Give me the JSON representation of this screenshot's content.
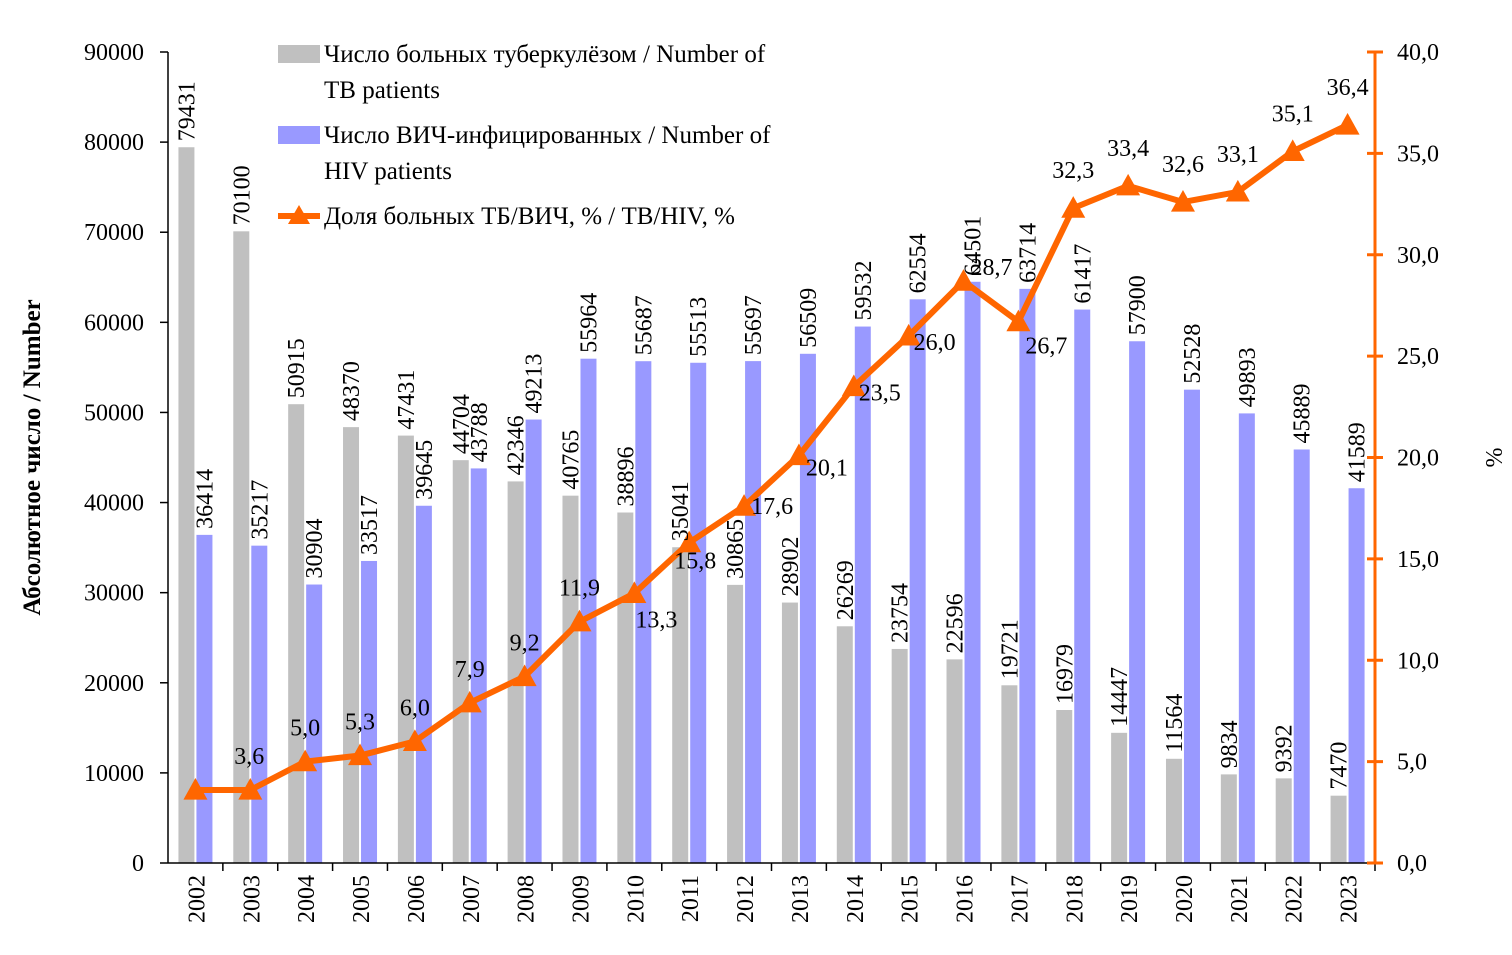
{
  "chart_data": {
    "type": "bar",
    "title": "",
    "categories": [
      "2002",
      "2003",
      "2004",
      "2005",
      "2006",
      "2007",
      "2008",
      "2009",
      "2010",
      "2011",
      "2012",
      "2013",
      "2014",
      "2015",
      "2016",
      "2017",
      "2018",
      "2019",
      "2020",
      "2021",
      "2022",
      "2023"
    ],
    "series": [
      {
        "name": "Число больных туберкулёзом / Number of TB patients",
        "legend_lines": [
          "Число больных туберкулёзом / Number of",
          "TB patients"
        ],
        "type": "bar",
        "axis": "left",
        "color": "#C0C0C0",
        "values": [
          79431,
          70100,
          50915,
          48370,
          47431,
          44704,
          42346,
          40765,
          38896,
          35041,
          30865,
          28902,
          26269,
          23754,
          22596,
          19721,
          16979,
          14447,
          11564,
          9834,
          9392,
          7470
        ]
      },
      {
        "name": "Число ВИЧ-инфицированных / Number of HIV patients",
        "legend_lines": [
          "Число ВИЧ-инфицированных / Number of",
          "HIV patients"
        ],
        "type": "bar",
        "axis": "left",
        "color": "#9999FF",
        "values": [
          36414,
          35217,
          30904,
          33517,
          39645,
          43788,
          49213,
          55964,
          55687,
          55513,
          55697,
          56509,
          59532,
          62554,
          64501,
          63714,
          61417,
          57900,
          52528,
          49893,
          45889,
          41589
        ]
      },
      {
        "name": "Доля больных ТБ/ВИЧ, % / TB/HIV, %",
        "legend_lines": [
          "Доля больных ТБ/ВИЧ, % / TB/HIV, %"
        ],
        "type": "line",
        "axis": "right",
        "color": "#FF6600",
        "marker": "triangle",
        "values": [
          3.6,
          5.0,
          5.3,
          6.0,
          7.9,
          9.2,
          11.9,
          13.3,
          15.8,
          17.6,
          20.1,
          23.5,
          26.0,
          28.7,
          26.7,
          32.3,
          33.4,
          32.6,
          33.1,
          35.1,
          36.4,
          36.4
        ],
        "labels": [
          "3,6",
          "5,0",
          "5,3",
          "6,0",
          "7,9",
          "9,2",
          "11,9",
          "13,3",
          "15,8",
          "17,6",
          "20,1",
          "23,5",
          "26,0",
          "28,7",
          "26,7",
          "32,3",
          "33,4",
          "32,6",
          "33,1",
          "35,1",
          "36,4",
          ""
        ]
      }
    ],
    "ylabel": "Абсолютное число / Number",
    "y2label": "%",
    "xlabel": "",
    "ylim": [
      0,
      90000
    ],
    "y2lim": [
      0,
      40
    ],
    "yticks": [
      "0",
      "10000",
      "20000",
      "30000",
      "40000",
      "50000",
      "60000",
      "70000",
      "80000",
      "90000"
    ],
    "y2ticks": [
      "0,0",
      "5,0",
      "10,0",
      "15,0",
      "20,0",
      "25,0",
      "30,0",
      "35,0",
      "40,0"
    ],
    "grid": false,
    "legend_position": "top-left"
  }
}
